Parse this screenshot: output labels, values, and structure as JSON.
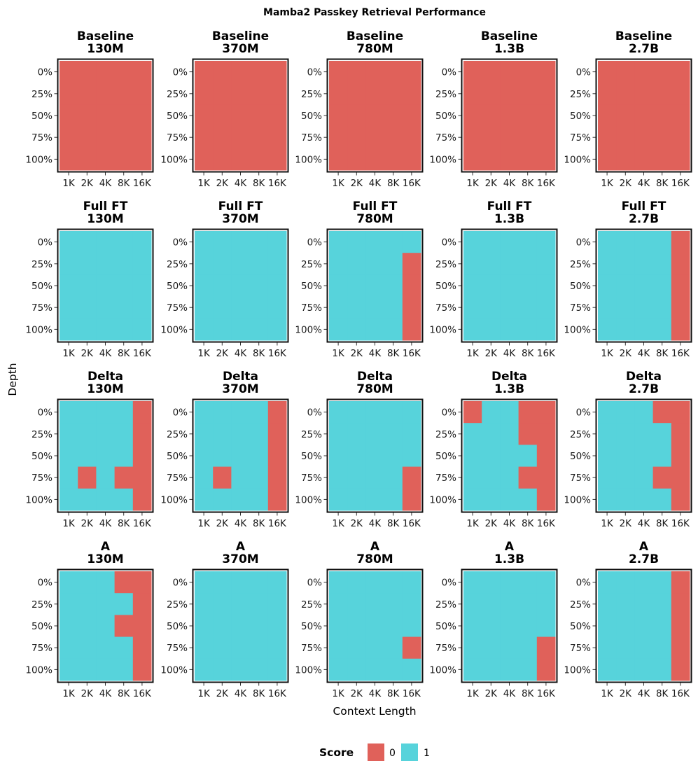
{
  "chart_data": {
    "type": "heatmap",
    "title": "Mamba2 Passkey Retrieval Performance",
    "xlabel": "Context Length",
    "ylabel": "Depth",
    "x_categories": [
      "1K",
      "2K",
      "4K",
      "8K",
      "16K"
    ],
    "y_categories": [
      "0%",
      "25%",
      "50%",
      "75%",
      "100%"
    ],
    "legend": {
      "title": "Score",
      "entries": [
        {
          "label": "0",
          "color": "#e0615a"
        },
        {
          "label": "1",
          "color": "#57d3db"
        }
      ]
    },
    "colors": {
      "0": "#e0615a",
      "1": "#57d3db",
      "frame": "#111111"
    },
    "rows": [
      {
        "method": "Baseline",
        "panels": [
          {
            "method": "Baseline",
            "size": "130M",
            "scores": [
              [
                0,
                0,
                0,
                0,
                0
              ],
              [
                0,
                0,
                0,
                0,
                0
              ],
              [
                0,
                0,
                0,
                0,
                0
              ],
              [
                0,
                0,
                0,
                0,
                0
              ],
              [
                0,
                0,
                0,
                0,
                0
              ]
            ]
          },
          {
            "method": "Baseline",
            "size": "370M",
            "scores": [
              [
                0,
                0,
                0,
                0,
                0
              ],
              [
                0,
                0,
                0,
                0,
                0
              ],
              [
                0,
                0,
                0,
                0,
                0
              ],
              [
                0,
                0,
                0,
                0,
                0
              ],
              [
                0,
                0,
                0,
                0,
                0
              ]
            ]
          },
          {
            "method": "Baseline",
            "size": "780M",
            "scores": [
              [
                0,
                0,
                0,
                0,
                0
              ],
              [
                0,
                0,
                0,
                0,
                0
              ],
              [
                0,
                0,
                0,
                0,
                0
              ],
              [
                0,
                0,
                0,
                0,
                0
              ],
              [
                0,
                0,
                0,
                0,
                0
              ]
            ]
          },
          {
            "method": "Baseline",
            "size": "1.3B",
            "scores": [
              [
                0,
                0,
                0,
                0,
                0
              ],
              [
                0,
                0,
                0,
                0,
                0
              ],
              [
                0,
                0,
                0,
                0,
                0
              ],
              [
                0,
                0,
                0,
                0,
                0
              ],
              [
                0,
                0,
                0,
                0,
                0
              ]
            ]
          },
          {
            "method": "Baseline",
            "size": "2.7B",
            "scores": [
              [
                0,
                0,
                0,
                0,
                0
              ],
              [
                0,
                0,
                0,
                0,
                0
              ],
              [
                0,
                0,
                0,
                0,
                0
              ],
              [
                0,
                0,
                0,
                0,
                0
              ],
              [
                0,
                0,
                0,
                0,
                0
              ]
            ]
          }
        ]
      },
      {
        "method": "Full FT",
        "panels": [
          {
            "method": "Full FT",
            "size": "130M",
            "scores": [
              [
                1,
                1,
                1,
                1,
                1
              ],
              [
                1,
                1,
                1,
                1,
                1
              ],
              [
                1,
                1,
                1,
                1,
                1
              ],
              [
                1,
                1,
                1,
                1,
                1
              ],
              [
                1,
                1,
                1,
                1,
                1
              ]
            ]
          },
          {
            "method": "Full FT",
            "size": "370M",
            "scores": [
              [
                1,
                1,
                1,
                1,
                1
              ],
              [
                1,
                1,
                1,
                1,
                1
              ],
              [
                1,
                1,
                1,
                1,
                1
              ],
              [
                1,
                1,
                1,
                1,
                1
              ],
              [
                1,
                1,
                1,
                1,
                1
              ]
            ]
          },
          {
            "method": "Full FT",
            "size": "780M",
            "scores": [
              [
                1,
                1,
                1,
                1,
                1
              ],
              [
                1,
                1,
                1,
                1,
                0
              ],
              [
                1,
                1,
                1,
                1,
                0
              ],
              [
                1,
                1,
                1,
                1,
                0
              ],
              [
                1,
                1,
                1,
                1,
                0
              ]
            ]
          },
          {
            "method": "Full FT",
            "size": "1.3B",
            "scores": [
              [
                1,
                1,
                1,
                1,
                1
              ],
              [
                1,
                1,
                1,
                1,
                1
              ],
              [
                1,
                1,
                1,
                1,
                1
              ],
              [
                1,
                1,
                1,
                1,
                1
              ],
              [
                1,
                1,
                1,
                1,
                1
              ]
            ]
          },
          {
            "method": "Full FT",
            "size": "2.7B",
            "scores": [
              [
                1,
                1,
                1,
                1,
                0
              ],
              [
                1,
                1,
                1,
                1,
                0
              ],
              [
                1,
                1,
                1,
                1,
                0
              ],
              [
                1,
                1,
                1,
                1,
                0
              ],
              [
                1,
                1,
                1,
                1,
                0
              ]
            ]
          }
        ]
      },
      {
        "method": "Delta",
        "panels": [
          {
            "method": "Delta",
            "size": "130M",
            "scores": [
              [
                1,
                1,
                1,
                1,
                0
              ],
              [
                1,
                1,
                1,
                1,
                0
              ],
              [
                1,
                1,
                1,
                1,
                0
              ],
              [
                1,
                0,
                1,
                0,
                0
              ],
              [
                1,
                1,
                1,
                1,
                0
              ]
            ]
          },
          {
            "method": "Delta",
            "size": "370M",
            "scores": [
              [
                1,
                1,
                1,
                1,
                0
              ],
              [
                1,
                1,
                1,
                1,
                0
              ],
              [
                1,
                1,
                1,
                1,
                0
              ],
              [
                1,
                0,
                1,
                1,
                0
              ],
              [
                1,
                1,
                1,
                1,
                0
              ]
            ]
          },
          {
            "method": "Delta",
            "size": "780M",
            "scores": [
              [
                1,
                1,
                1,
                1,
                1
              ],
              [
                1,
                1,
                1,
                1,
                1
              ],
              [
                1,
                1,
                1,
                1,
                1
              ],
              [
                1,
                1,
                1,
                1,
                0
              ],
              [
                1,
                1,
                1,
                1,
                0
              ]
            ]
          },
          {
            "method": "Delta",
            "size": "1.3B",
            "scores": [
              [
                0,
                1,
                1,
                0,
                0
              ],
              [
                1,
                1,
                1,
                0,
                0
              ],
              [
                1,
                1,
                1,
                1,
                0
              ],
              [
                1,
                1,
                1,
                0,
                0
              ],
              [
                1,
                1,
                1,
                1,
                0
              ]
            ]
          },
          {
            "method": "Delta",
            "size": "2.7B",
            "scores": [
              [
                1,
                1,
                1,
                0,
                0
              ],
              [
                1,
                1,
                1,
                1,
                0
              ],
              [
                1,
                1,
                1,
                1,
                0
              ],
              [
                1,
                1,
                1,
                0,
                0
              ],
              [
                1,
                1,
                1,
                1,
                0
              ]
            ]
          }
        ]
      },
      {
        "method": "A",
        "panels": [
          {
            "method": "A",
            "size": "130M",
            "scores": [
              [
                1,
                1,
                1,
                0,
                0
              ],
              [
                1,
                1,
                1,
                1,
                0
              ],
              [
                1,
                1,
                1,
                0,
                0
              ],
              [
                1,
                1,
                1,
                1,
                0
              ],
              [
                1,
                1,
                1,
                1,
                0
              ]
            ]
          },
          {
            "method": "A",
            "size": "370M",
            "scores": [
              [
                1,
                1,
                1,
                1,
                1
              ],
              [
                1,
                1,
                1,
                1,
                1
              ],
              [
                1,
                1,
                1,
                1,
                1
              ],
              [
                1,
                1,
                1,
                1,
                1
              ],
              [
                1,
                1,
                1,
                1,
                1
              ]
            ]
          },
          {
            "method": "A",
            "size": "780M",
            "scores": [
              [
                1,
                1,
                1,
                1,
                1
              ],
              [
                1,
                1,
                1,
                1,
                1
              ],
              [
                1,
                1,
                1,
                1,
                1
              ],
              [
                1,
                1,
                1,
                1,
                0
              ],
              [
                1,
                1,
                1,
                1,
                1
              ]
            ]
          },
          {
            "method": "A",
            "size": "1.3B",
            "scores": [
              [
                1,
                1,
                1,
                1,
                1
              ],
              [
                1,
                1,
                1,
                1,
                1
              ],
              [
                1,
                1,
                1,
                1,
                1
              ],
              [
                1,
                1,
                1,
                1,
                0
              ],
              [
                1,
                1,
                1,
                1,
                0
              ]
            ]
          },
          {
            "method": "A",
            "size": "2.7B",
            "scores": [
              [
                1,
                1,
                1,
                1,
                0
              ],
              [
                1,
                1,
                1,
                1,
                0
              ],
              [
                1,
                1,
                1,
                1,
                0
              ],
              [
                1,
                1,
                1,
                1,
                0
              ],
              [
                1,
                1,
                1,
                1,
                0
              ]
            ]
          }
        ]
      }
    ]
  }
}
